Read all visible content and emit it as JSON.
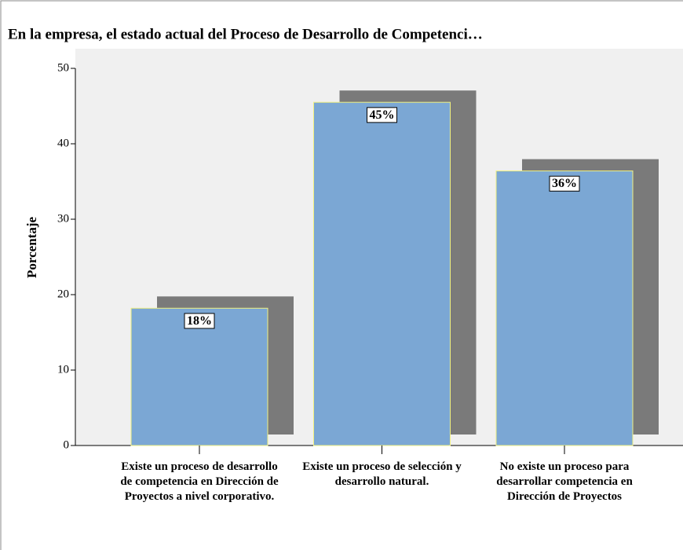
{
  "chart_data": {
    "type": "bar",
    "title": "En la empresa, el estado actual del Proceso de Desarrollo de Competenci…",
    "ylabel": "Porcentaje",
    "categories": [
      "Existe un proceso de desarrollo de competencia en Dirección de Proyectos a nivel corporativo.",
      "Existe un proceso de selección y desarrollo natural.",
      "No existe un proceso para desarrollar competencia en Dirección de Proyectos"
    ],
    "values": [
      18.2,
      45.5,
      36.4
    ],
    "value_labels": [
      "18%",
      "45%",
      "36%"
    ],
    "color": "#7ba7d4",
    "ylim": [
      0,
      50
    ],
    "yticks": [
      0,
      10,
      20,
      30,
      40,
      50
    ]
  }
}
